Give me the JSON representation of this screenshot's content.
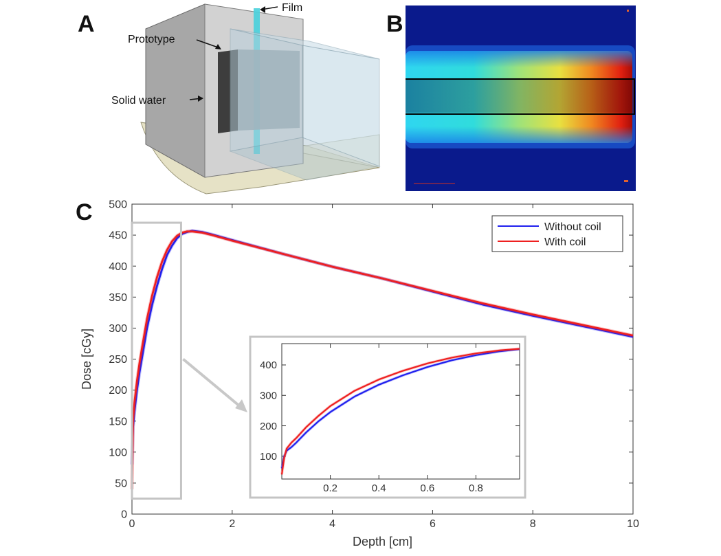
{
  "panels": {
    "a": {
      "letter": "A",
      "labels": {
        "film": "Film",
        "prototype": "Prototype",
        "solid_water": "Solid water"
      }
    },
    "b": {
      "letter": "B"
    },
    "c": {
      "letter": "C"
    }
  },
  "chart_data": [
    {
      "type": "line",
      "title": "",
      "xlabel": "Depth [cm]",
      "ylabel": "Dose [cGy]",
      "xlim": [
        0,
        10
      ],
      "ylim": [
        0,
        500
      ],
      "xticks": [
        0,
        2,
        4,
        6,
        8,
        10
      ],
      "yticks": [
        0,
        50,
        100,
        150,
        200,
        250,
        300,
        350,
        400,
        450,
        500
      ],
      "grid": false,
      "legend": "top-right",
      "series": [
        {
          "name": "Without coil",
          "color": "#2020ee",
          "x": [
            0.0,
            0.02,
            0.05,
            0.1,
            0.15,
            0.2,
            0.3,
            0.4,
            0.5,
            0.6,
            0.7,
            0.8,
            0.9,
            1.0,
            1.1,
            1.2,
            1.4,
            1.6,
            2.0,
            3.0,
            4.0,
            5.0,
            6.0,
            7.0,
            8.0,
            9.0,
            10.0
          ],
          "y": [
            80,
            140,
            165,
            200,
            228,
            252,
            300,
            337,
            368,
            395,
            418,
            433,
            445,
            452,
            455,
            457,
            455,
            451,
            442,
            420,
            399,
            380,
            359,
            338,
            320,
            303,
            286
          ]
        },
        {
          "name": "With coil",
          "color": "#ee2020",
          "x": [
            0.0,
            0.02,
            0.05,
            0.1,
            0.15,
            0.2,
            0.3,
            0.4,
            0.5,
            0.6,
            0.7,
            0.8,
            0.9,
            1.0,
            1.1,
            1.2,
            1.4,
            1.6,
            2.0,
            3.0,
            4.0,
            5.0,
            6.0,
            7.0,
            8.0,
            9.0,
            10.0
          ],
          "y": [
            40,
            150,
            180,
            215,
            243,
            268,
            315,
            352,
            382,
            407,
            426,
            440,
            449,
            454,
            456,
            456,
            454,
            450,
            441,
            420,
            399,
            380,
            360,
            340,
            322,
            305,
            288
          ]
        }
      ]
    },
    {
      "type": "line",
      "title": "",
      "xlabel": "",
      "ylabel": "",
      "xlim": [
        0,
        0.98
      ],
      "ylim": [
        25,
        470
      ],
      "xticks": [
        0.2,
        0.4,
        0.6,
        0.8
      ],
      "yticks": [
        100,
        200,
        300,
        400
      ],
      "grid": false,
      "series": [
        {
          "name": "Without coil",
          "color": "#2020ee",
          "x": [
            0.0,
            0.01,
            0.02,
            0.04,
            0.06,
            0.1,
            0.15,
            0.2,
            0.3,
            0.4,
            0.5,
            0.6,
            0.7,
            0.8,
            0.9,
            0.98
          ],
          "y": [
            60,
            100,
            118,
            130,
            145,
            178,
            214,
            245,
            296,
            335,
            366,
            393,
            415,
            432,
            445,
            452
          ]
        },
        {
          "name": "With coil",
          "color": "#ee2020",
          "x": [
            0.0,
            0.01,
            0.02,
            0.04,
            0.06,
            0.1,
            0.15,
            0.2,
            0.3,
            0.4,
            0.5,
            0.6,
            0.7,
            0.8,
            0.9,
            0.98
          ],
          "y": [
            40,
            95,
            125,
            145,
            160,
            195,
            232,
            265,
            315,
            352,
            381,
            405,
            424,
            438,
            448,
            453
          ]
        }
      ]
    }
  ]
}
